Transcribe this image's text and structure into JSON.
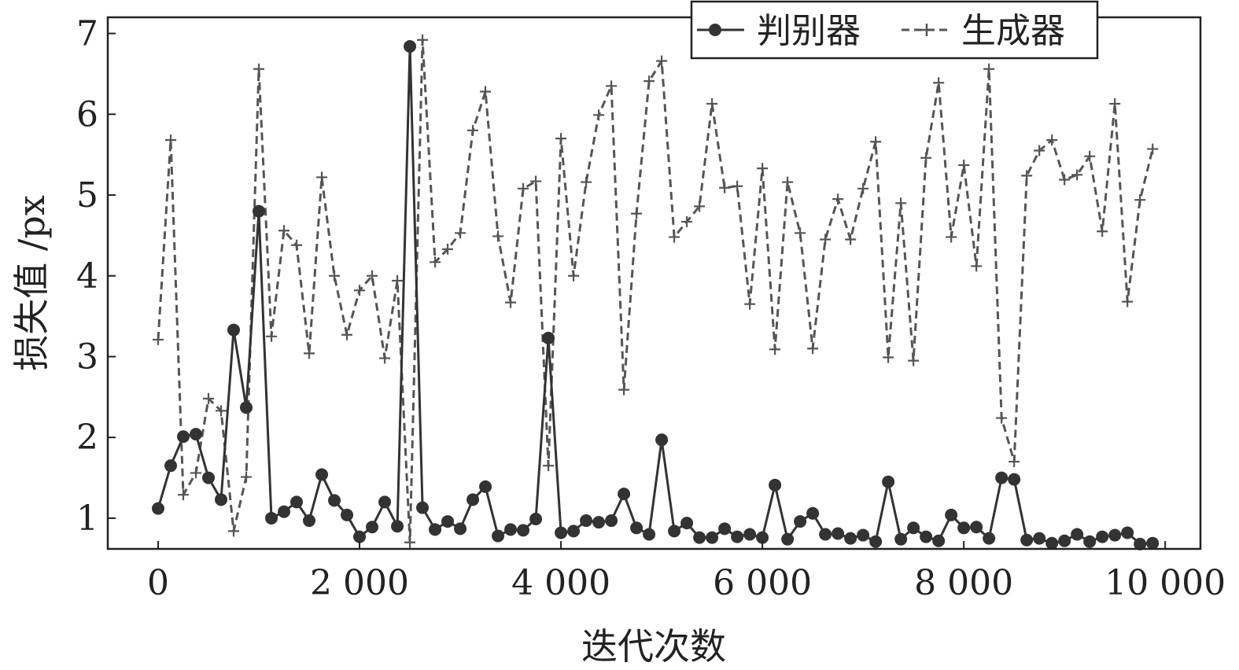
{
  "chart_data": {
    "type": "line",
    "title": "",
    "xlabel": "迭代次数",
    "ylabel": "损失值 /px",
    "xlim": [
      -500,
      10350
    ],
    "ylim": [
      0.62,
      7.2
    ],
    "x_ticks": [
      0,
      2000,
      4000,
      6000,
      8000,
      10000
    ],
    "x_tick_labels": [
      "0",
      "2 000",
      "4 000",
      "6 000",
      "8 000",
      "10 000"
    ],
    "y_ticks": [
      1,
      2,
      3,
      4,
      5,
      6,
      7
    ],
    "y_tick_labels": [
      "1",
      "2",
      "3",
      "4",
      "5",
      "6",
      "7"
    ],
    "grid": false,
    "legend_position": "top-right",
    "x": [
      0,
      125,
      250,
      375,
      500,
      625,
      750,
      875,
      1000,
      1125,
      1250,
      1375,
      1500,
      1625,
      1750,
      1875,
      2000,
      2125,
      2250,
      2375,
      2500,
      2625,
      2750,
      2875,
      3000,
      3125,
      3250,
      3375,
      3500,
      3625,
      3750,
      3875,
      4000,
      4125,
      4250,
      4375,
      4500,
      4625,
      4750,
      4875,
      5000,
      5125,
      5250,
      5375,
      5500,
      5625,
      5750,
      5875,
      6000,
      6125,
      6250,
      6375,
      6500,
      6625,
      6750,
      6875,
      7000,
      7125,
      7250,
      7375,
      7500,
      7625,
      7750,
      7875,
      8000,
      8125,
      8250,
      8375,
      8500,
      8625,
      8750,
      8875,
      9000,
      9125,
      9250,
      9375,
      9500,
      9625,
      9750,
      9875
    ],
    "series": [
      {
        "name": "判别器",
        "style": "solid",
        "marker": "circle",
        "color": "#333333",
        "values": [
          1.12,
          1.65,
          2.01,
          2.04,
          1.5,
          1.23,
          3.33,
          2.37,
          4.8,
          1.0,
          1.08,
          1.2,
          0.97,
          1.54,
          1.22,
          1.04,
          0.77,
          0.89,
          1.2,
          0.9,
          6.84,
          1.13,
          0.86,
          0.96,
          0.87,
          1.23,
          1.39,
          0.78,
          0.86,
          0.85,
          0.99,
          3.23,
          0.82,
          0.84,
          0.97,
          0.95,
          0.97,
          1.3,
          0.88,
          0.8,
          1.97,
          0.84,
          0.94,
          0.76,
          0.76,
          0.87,
          0.77,
          0.8,
          0.76,
          1.41,
          0.74,
          0.96,
          1.06,
          0.8,
          0.81,
          0.75,
          0.79,
          0.71,
          1.45,
          0.74,
          0.88,
          0.77,
          0.72,
          1.04,
          0.88,
          0.89,
          0.75,
          1.5,
          1.48,
          0.73,
          0.75,
          0.69,
          0.72,
          0.8,
          0.71,
          0.77,
          0.79,
          0.82,
          0.68,
          0.69
        ]
      },
      {
        "name": "生成器",
        "style": "dashed",
        "marker": "plus",
        "color": "#555555",
        "values": [
          3.21,
          5.68,
          1.29,
          1.56,
          2.48,
          2.33,
          0.84,
          1.51,
          6.56,
          3.25,
          4.56,
          4.38,
          3.04,
          5.22,
          4.0,
          3.27,
          3.82,
          4.0,
          2.98,
          3.94,
          0.7,
          6.92,
          4.17,
          4.33,
          4.53,
          5.8,
          6.28,
          4.49,
          3.67,
          5.08,
          5.17,
          1.65,
          5.7,
          4.0,
          5.16,
          5.99,
          6.35,
          2.59,
          4.77,
          6.41,
          6.66,
          4.48,
          4.67,
          4.86,
          6.13,
          5.09,
          5.11,
          3.65,
          5.33,
          3.09,
          5.16,
          4.53,
          3.1,
          4.45,
          4.95,
          4.45,
          5.08,
          5.66,
          2.99,
          4.9,
          2.95,
          5.46,
          6.39,
          4.48,
          5.37,
          4.12,
          6.56,
          2.24,
          1.7,
          5.24,
          5.55,
          5.68,
          5.19,
          5.25,
          5.48,
          4.55,
          6.13,
          3.68,
          4.94,
          5.57
        ]
      }
    ]
  }
}
